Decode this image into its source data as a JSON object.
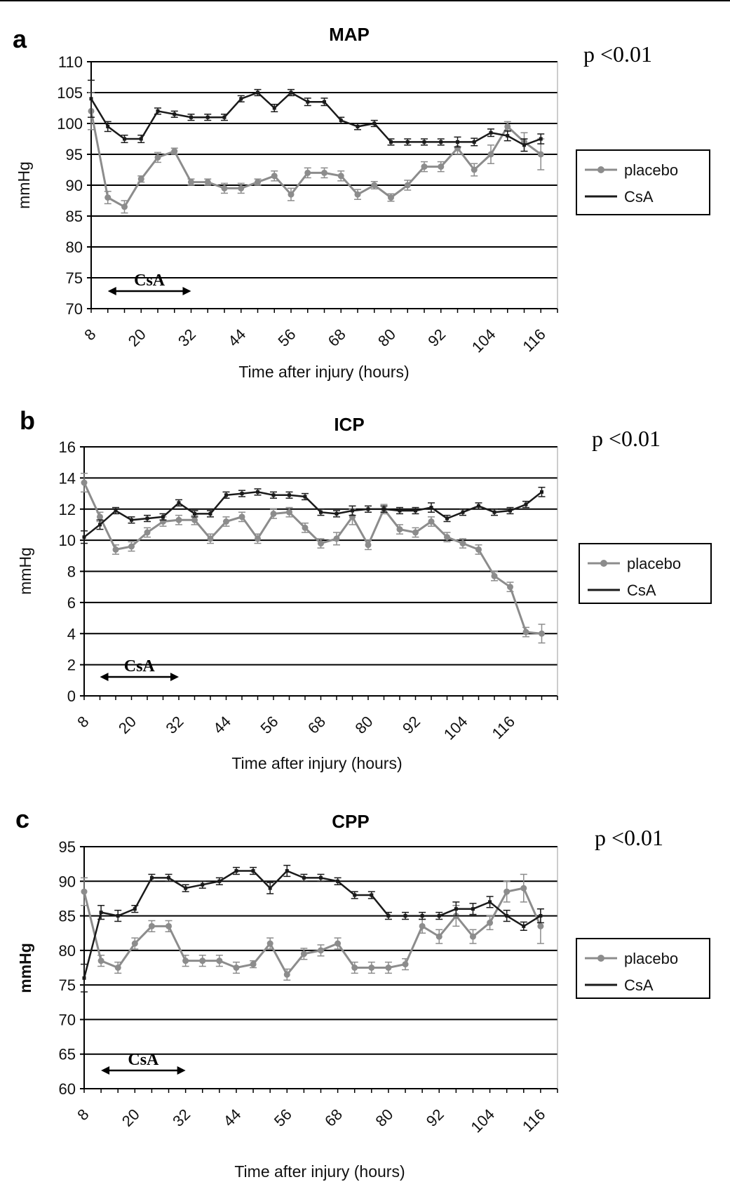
{
  "colors": {
    "placebo": "#8c8c8c",
    "csa": "#1a1a1a",
    "grid": "#000000",
    "background": "#ffffff"
  },
  "chart_data": [
    {
      "panel": "a",
      "type": "line",
      "title": "MAP",
      "p_value": "p <0.01",
      "ylabel": "mmHg",
      "xlabel": "Time after injury (hours)",
      "ylim": [
        70,
        110
      ],
      "yticks": [
        "110",
        "105",
        "100",
        "95",
        "90",
        "85",
        "80",
        "75",
        "70"
      ],
      "xticks": [
        "8",
        "20",
        "32",
        "44",
        "56",
        "68",
        "80",
        "92",
        "104",
        "116"
      ],
      "grid": "horizontal",
      "legend": "right",
      "annotation": "CsA",
      "annotation_range": [
        12,
        32
      ],
      "x": [
        8,
        12,
        16,
        20,
        24,
        28,
        32,
        36,
        40,
        44,
        48,
        52,
        56,
        60,
        64,
        68,
        72,
        76,
        80,
        84,
        88,
        92,
        96,
        100,
        104,
        108,
        112,
        116,
        120
      ],
      "series": [
        {
          "name": "placebo",
          "values": [
            102,
            88,
            86.5,
            91,
            94.5,
            95.5,
            90.5,
            90.5,
            89.5,
            89.5,
            90.5,
            91.5,
            88.5,
            92,
            92,
            91.5,
            88.5,
            90,
            88,
            90,
            93,
            93,
            96,
            92.5,
            95,
            99.5,
            97,
            95,
            null
          ],
          "errors": [
            3,
            1,
            1,
            0.5,
            0.8,
            0.5,
            0.5,
            0.5,
            0.8,
            0.8,
            0.5,
            0.8,
            1,
            0.8,
            0.8,
            0.8,
            0.8,
            0.6,
            0.6,
            0.8,
            0.8,
            0.8,
            1,
            1,
            1.5,
            0.8,
            1.5,
            2.5,
            0
          ]
        },
        {
          "name": "CsA",
          "values": [
            104,
            99.5,
            97.5,
            97.5,
            102,
            101.5,
            101,
            101,
            101,
            104,
            105,
            102.5,
            105,
            103.5,
            103.5,
            100.5,
            99.5,
            100,
            97,
            97,
            97,
            97,
            97,
            97,
            98.5,
            98,
            96.5,
            97.5,
            null
          ],
          "errors": [
            3,
            0.8,
            0.6,
            0.6,
            0.5,
            0.5,
            0.5,
            0.5,
            0.5,
            0.5,
            0.5,
            0.6,
            0.5,
            0.6,
            0.6,
            0.5,
            0.5,
            0.5,
            0.5,
            0.5,
            0.5,
            0.5,
            0.8,
            0.6,
            0.6,
            0.8,
            1,
            0.8,
            0
          ]
        }
      ]
    },
    {
      "panel": "b",
      "type": "line",
      "title": "ICP",
      "p_value": "p <0.01",
      "ylabel": "mmHg",
      "xlabel": "Time after injury (hours)",
      "ylim": [
        0,
        16
      ],
      "yticks": [
        "16",
        "14",
        "12",
        "10",
        "8",
        "6",
        "4",
        "2",
        "0"
      ],
      "xticks": [
        "8",
        "20",
        "32",
        "44",
        "56",
        "68",
        "80",
        "92",
        "104",
        "116"
      ],
      "grid": "horizontal",
      "legend": "right",
      "annotation": "CsA",
      "annotation_range": [
        12,
        32
      ],
      "x": [
        8,
        12,
        16,
        20,
        24,
        28,
        32,
        36,
        40,
        44,
        48,
        52,
        56,
        60,
        64,
        68,
        72,
        76,
        80,
        84,
        88,
        92,
        96,
        100,
        104,
        108,
        112,
        116,
        120,
        124,
        128
      ],
      "series": [
        {
          "name": "placebo",
          "values": [
            13.7,
            11.5,
            9.4,
            9.6,
            10.5,
            11.2,
            11.3,
            11.3,
            10.1,
            11.2,
            11.5,
            10.1,
            11.7,
            11.8,
            10.8,
            9.8,
            10.1,
            11.5,
            9.7,
            12,
            10.7,
            10.5,
            11.2,
            10.2,
            9.8,
            9.4,
            7.7,
            7,
            4.1,
            4,
            null
          ],
          "errors": [
            0.6,
            0.3,
            0.3,
            0.3,
            0.3,
            0.3,
            0.3,
            0.3,
            0.3,
            0.3,
            0.3,
            0.3,
            0.3,
            0.3,
            0.3,
            0.3,
            0.4,
            0.5,
            0.3,
            0.3,
            0.3,
            0.3,
            0.3,
            0.3,
            0.3,
            0.3,
            0.3,
            0.3,
            0.3,
            0.6,
            0
          ]
        },
        {
          "name": "CsA",
          "values": [
            10.2,
            11,
            11.9,
            11.3,
            11.4,
            11.5,
            12.4,
            11.7,
            11.7,
            12.9,
            13,
            13.1,
            12.9,
            12.9,
            12.8,
            11.8,
            11.7,
            11.9,
            12,
            12,
            11.9,
            11.9,
            12.1,
            11.4,
            11.8,
            12.2,
            11.8,
            11.9,
            12.3,
            13.1,
            null
          ],
          "errors": [
            0.4,
            0.3,
            0.2,
            0.2,
            0.2,
            0.2,
            0.2,
            0.2,
            0.2,
            0.2,
            0.2,
            0.2,
            0.2,
            0.2,
            0.2,
            0.2,
            0.2,
            0.3,
            0.2,
            0.2,
            0.2,
            0.2,
            0.3,
            0.2,
            0.2,
            0.2,
            0.2,
            0.2,
            0.2,
            0.3,
            0
          ]
        }
      ]
    },
    {
      "panel": "c",
      "type": "line",
      "title": "CPP",
      "p_value": "p <0.01",
      "ylabel": "mmHg",
      "xlabel": "Time after injury (hours)",
      "ylim": [
        60,
        95
      ],
      "yticks": [
        "95",
        "90",
        "85",
        "80",
        "75",
        "70",
        "65",
        "60"
      ],
      "xticks": [
        "8",
        "20",
        "32",
        "44",
        "56",
        "68",
        "80",
        "92",
        "104",
        "116"
      ],
      "grid": "horizontal",
      "legend": "right",
      "annotation": "CsA",
      "annotation_range": [
        12,
        32
      ],
      "x": [
        8,
        12,
        16,
        20,
        24,
        28,
        32,
        36,
        40,
        44,
        48,
        52,
        56,
        60,
        64,
        68,
        72,
        76,
        80,
        84,
        88,
        92,
        96,
        100,
        104,
        108,
        112,
        116,
        120
      ],
      "series": [
        {
          "name": "placebo",
          "values": [
            88.5,
            78.5,
            77.5,
            81,
            83.5,
            83.5,
            78.5,
            78.5,
            78.5,
            77.5,
            78,
            81,
            76.5,
            79.5,
            80,
            81,
            77.5,
            77.5,
            77.5,
            78,
            83.5,
            82,
            85,
            82,
            84,
            88.5,
            89,
            83.5,
            null
          ],
          "errors": [
            2,
            0.8,
            0.8,
            0.8,
            0.8,
            0.8,
            0.8,
            0.8,
            0.8,
            0.8,
            0.5,
            0.8,
            0.8,
            0.8,
            0.8,
            0.8,
            0.8,
            0.8,
            0.8,
            0.8,
            1,
            1,
            1.5,
            1,
            1,
            1.5,
            2,
            2.5,
            0
          ]
        },
        {
          "name": "CsA",
          "values": [
            76,
            85.5,
            85,
            86,
            90.5,
            90.5,
            89,
            89.5,
            90,
            91.5,
            91.5,
            89,
            91.5,
            90.5,
            90.5,
            90,
            88,
            88,
            85,
            85,
            85,
            85,
            86,
            86,
            87,
            85,
            83.5,
            85,
            null
          ],
          "errors": [
            2,
            1,
            0.8,
            0.5,
            0.5,
            0.5,
            0.5,
            0.5,
            0.5,
            0.5,
            0.5,
            0.8,
            0.8,
            0.5,
            0.5,
            0.5,
            0.5,
            0.5,
            0.5,
            0.5,
            0.5,
            0.5,
            1,
            0.8,
            0.8,
            0.8,
            0.6,
            1,
            0
          ]
        }
      ]
    }
  ]
}
